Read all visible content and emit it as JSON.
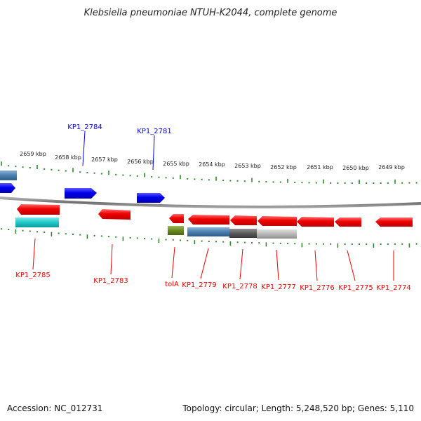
{
  "title": "Klebsiella pneumoniae NTUH-K2044, complete genome",
  "footer": {
    "accession": "Accession: NC_012731",
    "summary": "Topology: circular; Length: 5,248,520 bp; Genes: 5,110"
  },
  "scale_labels": [
    "2659 kbp",
    "2658 kbp",
    "2657 kbp",
    "2656 kbp",
    "2655 kbp",
    "2654 kbp",
    "2653 kbp",
    "2652 kbp",
    "2651 kbp",
    "2650 kbp",
    "2649 kbp"
  ],
  "upper_gene_labels": [
    "KP1_2784",
    "KP1_2781"
  ],
  "lower_gene_labels": [
    "KP1_2785",
    "KP1_2783",
    "tolA",
    "KP1_2779",
    "KP1_2778",
    "KP1_2777",
    "KP1_2776",
    "KP1_2775",
    "KP1_2774"
  ],
  "colors": {
    "forward_strand": "#0000ee",
    "reverse_strand": "#ee0000",
    "backbone": "#808080",
    "ticks": "#2a8a2a",
    "cyan_feature": "#20c8c8",
    "olive_feature": "#6a8a20",
    "steel_feature": "#4a7fb0",
    "dark_gray_feature": "#5a5a5a",
    "light_gray_feature": "#b8b8b8"
  }
}
